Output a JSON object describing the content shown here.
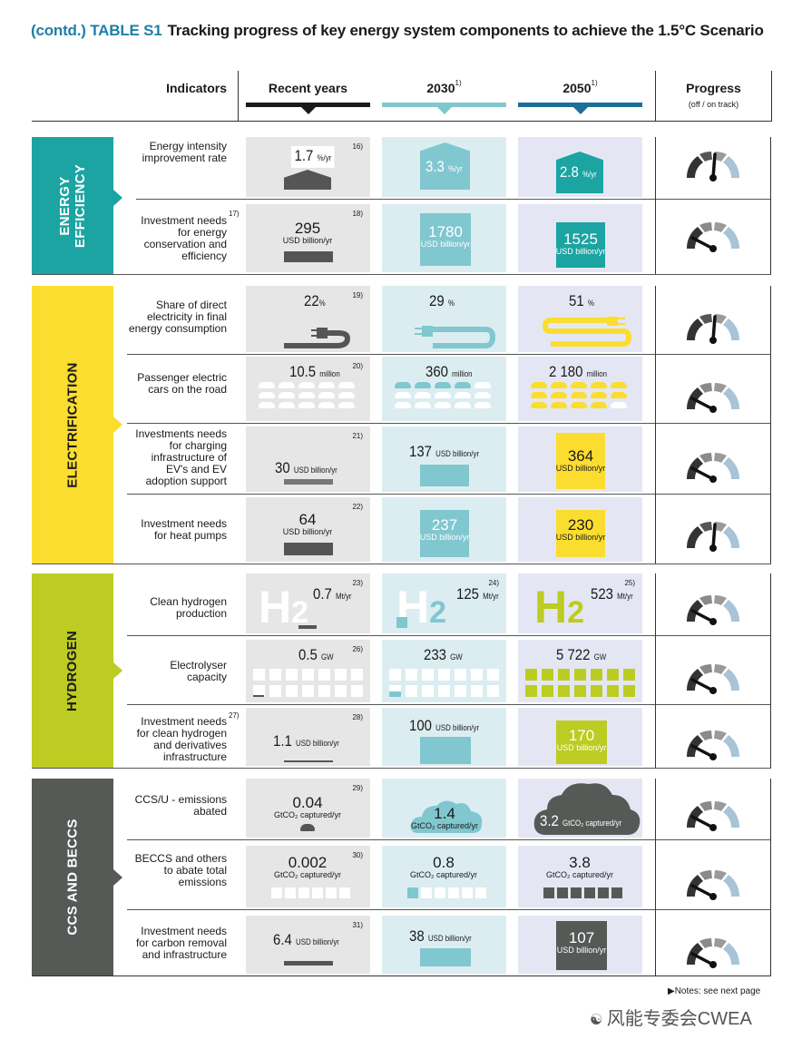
{
  "title": {
    "prefix": "(contd.) TABLE S1",
    "text": "Tracking progress of key energy system components to achieve the 1.5°C Scenario"
  },
  "columns": {
    "indicators": "Indicators",
    "recent": "Recent years",
    "y2030": "2030",
    "y2030_note": "1)",
    "y2050": "2050",
    "y2050_note": "1)",
    "progress": "Progress",
    "progress_sub": "(off / on track)"
  },
  "colors": {
    "efficiency": "#1ba4a2",
    "electrification": "#fbdd2f",
    "hydrogen": "#bccc22",
    "ccs": "#555a57",
    "recent_bar": "#1a1a1a",
    "bar_2030": "#80c7cf",
    "bar_2050": "#1b6f98"
  },
  "sections": [
    {
      "name_line1": "ENERGY",
      "name_line2": "EFFICIENCY",
      "color": "#1ba4a2"
    },
    {
      "name_line1": "ELECTRIFICATION",
      "name_line2": "",
      "color": "#fbdd2f"
    },
    {
      "name_line1": "HYDROGEN",
      "name_line2": "",
      "color": "#bccc22"
    },
    {
      "name_line1": "CCS AND BECCS",
      "name_line2": "",
      "color": "#555a57"
    }
  ],
  "rows": [
    {
      "indicator": "Energy intensity improvement rate",
      "note": "",
      "recent": "1.7",
      "recent_unit": "%/yr",
      "ref": "16)",
      "v2030": "3.3",
      "u2030": "%/yr",
      "v2050": "2.8",
      "u2050": "%/yr",
      "gauge": "near-track"
    },
    {
      "indicator": "Investment needs for energy conservation and efficiency",
      "note": "17)",
      "recent": "295",
      "recent_unit": "USD billion/yr",
      "ref": "18)",
      "v2030": "1780",
      "u2030": "USD billion/yr",
      "v2050": "1525",
      "u2050": "USD billion/yr",
      "gauge": "off-track"
    },
    {
      "indicator": "Share of direct electricity in final energy consumption",
      "note": "",
      "recent": "22",
      "recent_unit": "%",
      "ref": "19)",
      "v2030": "29",
      "u2030": "%",
      "v2050": "51",
      "u2050": "%",
      "gauge": "near-track"
    },
    {
      "indicator": "Passenger electric cars on the road",
      "note": "",
      "recent": "10.5",
      "recent_unit": "million",
      "ref": "20)",
      "v2030": "360",
      "u2030": "million",
      "v2050": "2 180",
      "u2050": "million",
      "gauge": "off-track"
    },
    {
      "indicator": "Investments needs for charging infrastructure of EV's and EV adoption support",
      "note": "",
      "recent": "30",
      "recent_unit": "USD billion/yr",
      "ref": "21)",
      "v2030": "137",
      "u2030": "USD billion/yr",
      "v2050": "364",
      "u2050": "USD billion/yr",
      "gauge": "off-track"
    },
    {
      "indicator": "Investment needs for heat pumps",
      "note": "",
      "recent": "64",
      "recent_unit": "USD billion/yr",
      "ref": "22)",
      "v2030": "237",
      "u2030": "USD billion/yr",
      "v2050": "230",
      "u2050": "USD billion/yr",
      "gauge": "near-track"
    },
    {
      "indicator": "Clean hydrogen production",
      "note": "",
      "recent": "0.7",
      "recent_unit": "Mt/yr",
      "ref": "23)",
      "v2030": "125",
      "u2030": "Mt/yr",
      "ref2030": "24)",
      "v2050": "523",
      "u2050": "Mt/yr",
      "ref2050": "25)",
      "gauge": "off-track"
    },
    {
      "indicator": "Electrolyser capacity",
      "note": "",
      "recent": "0.5",
      "recent_unit": "GW",
      "ref": "26)",
      "v2030": "233",
      "u2030": "GW",
      "v2050": "5 722",
      "u2050": "GW",
      "gauge": "off-track"
    },
    {
      "indicator": "Investment needs for clean hydrogen and derivatives infrastructure",
      "note": "27)",
      "recent": "1.1",
      "recent_unit": "USD billion/yr",
      "ref": "28)",
      "v2030": "100",
      "u2030": "USD billion/yr",
      "v2050": "170",
      "u2050": "USD billion/yr",
      "gauge": "off-track"
    },
    {
      "indicator": "CCS/U - emissions abated",
      "note": "",
      "recent": "0.04",
      "recent_unit": "GtCO₂ captured/yr",
      "ref": "29)",
      "v2030": "1.4",
      "u2030": "GtCO₂ captured/yr",
      "v2050": "3.2",
      "u2050": "GtCO₂ captured/yr",
      "gauge": "off-track"
    },
    {
      "indicator": "BECCS and others to abate total emissions",
      "note": "",
      "recent": "0.002",
      "recent_unit": "GtCO₂ captured/yr",
      "ref": "30)",
      "v2030": "0.8",
      "u2030": "GtCO₂ captured/yr",
      "v2050": "3.8",
      "u2050": "GtCO₂ captured/yr",
      "gauge": "off-track"
    },
    {
      "indicator": "Investment needs for carbon removal and infrastructure",
      "note": "",
      "recent": "6.4",
      "recent_unit": "USD billion/yr",
      "ref": "31)",
      "v2030": "38",
      "u2030": "USD billion/yr",
      "v2050": "107",
      "u2050": "USD billion/yr",
      "gauge": "off-track"
    }
  ],
  "footer": {
    "notes": "Notes: see next page",
    "watermark": "风能专委会CWEA"
  }
}
